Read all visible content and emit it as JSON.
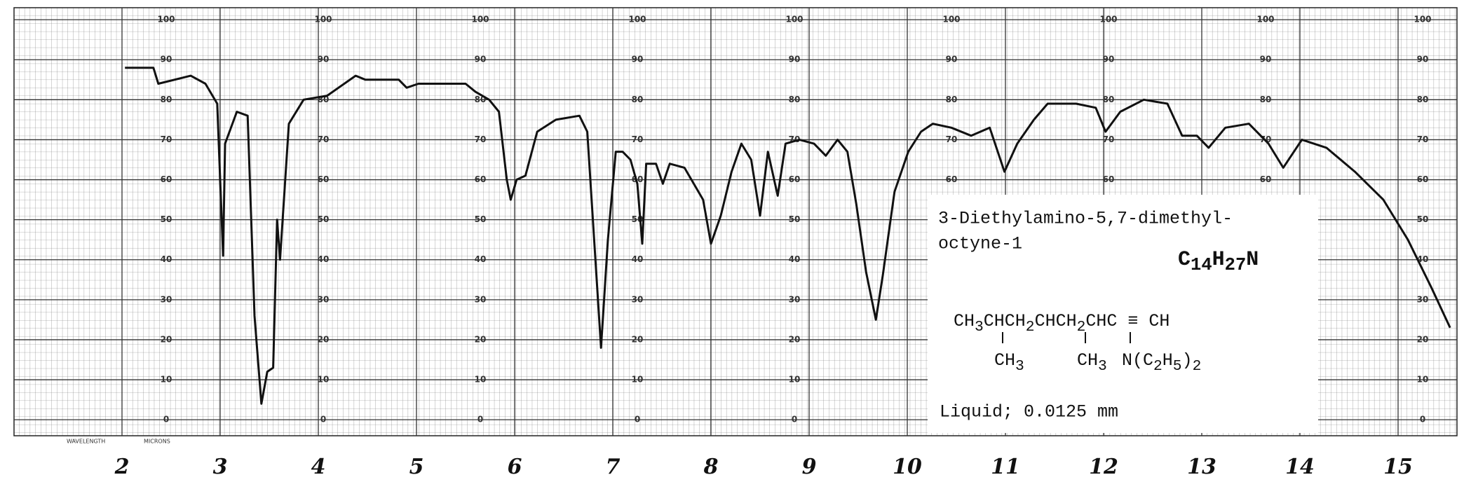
{
  "chart_data": {
    "type": "line",
    "xlabel": "WAVELENGTH",
    "xunit": "MICRONS",
    "x": [
      2.03,
      2.32,
      2.37,
      2.7,
      2.85,
      2.97,
      3.03,
      3.05,
      3.17,
      3.28,
      3.35,
      3.42,
      3.48,
      3.54,
      3.58,
      3.61,
      3.7,
      3.85,
      4.09,
      4.38,
      4.48,
      4.82,
      4.9,
      5.02,
      5.5,
      5.6,
      5.74,
      5.84,
      5.92,
      5.96,
      6.02,
      6.11,
      6.23,
      6.42,
      6.66,
      6.74,
      6.81,
      6.88,
      6.95,
      7.03,
      7.1,
      7.18,
      7.25,
      7.3,
      7.34,
      7.44,
      7.51,
      7.58,
      7.73,
      7.92,
      8.0,
      8.1,
      8.21,
      8.31,
      8.41,
      8.5,
      8.58,
      8.68,
      8.76,
      8.9,
      9.05,
      9.17,
      9.29,
      9.39,
      9.48,
      9.58,
      9.68,
      9.75,
      9.87,
      10.01,
      10.14,
      10.26,
      10.45,
      10.65,
      10.84,
      10.99,
      11.12,
      11.29,
      11.43,
      11.72,
      11.92,
      12.02,
      12.17,
      12.41,
      12.65,
      12.8,
      12.95,
      13.07,
      13.24,
      13.48,
      13.68,
      13.83,
      14.02,
      14.27,
      14.56,
      14.85,
      15.1,
      15.34,
      15.53
    ],
    "values": [
      88,
      88,
      84,
      86,
      84,
      79,
      41,
      69,
      77,
      76,
      26,
      4,
      12,
      13,
      50,
      40,
      74,
      80,
      81,
      86,
      85,
      85,
      83,
      84,
      84,
      82,
      80,
      77,
      60,
      55,
      60,
      61,
      72,
      75,
      76,
      72,
      45,
      18,
      45,
      67,
      67,
      65,
      59,
      44,
      64,
      64,
      59,
      64,
      63,
      55,
      44,
      51,
      62,
      69,
      65,
      51,
      67,
      56,
      69,
      70,
      69,
      66,
      70,
      67,
      54,
      37,
      25,
      36,
      57,
      67,
      72,
      74,
      73,
      71,
      73,
      62,
      69,
      75,
      79,
      79,
      78,
      72,
      77,
      80,
      79,
      71,
      71,
      68,
      73,
      74,
      69,
      63,
      70,
      68,
      62,
      55,
      45,
      33,
      23
    ],
    "color": "#111111",
    "xlim": [
      0.9,
      15.6
    ],
    "xticks": [
      2,
      3,
      4,
      5,
      6,
      7,
      8,
      9,
      10,
      11,
      12,
      13,
      14,
      15
    ],
    "ylim": [
      -4,
      103
    ],
    "yticks": [
      0,
      10,
      20,
      30,
      40,
      50,
      60,
      70,
      80,
      90,
      100
    ],
    "grid": true,
    "compound": {
      "name": [
        "3-Diethylamino-5,7-dimethyl-",
        "octyne-1"
      ],
      "formula": "C14H27N",
      "structure": "CH3CHCH2CHCH2CHC ≡ CH",
      "substituents": [
        "CH3",
        "CH3",
        "N(C2H5)2"
      ],
      "sample": "Liquid; 0.0125 mm"
    }
  }
}
